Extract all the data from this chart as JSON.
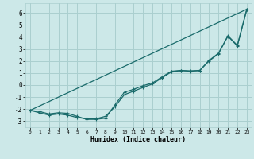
{
  "xlabel": "Humidex (Indice chaleur)",
  "bg_color": "#cce8e8",
  "grid_color": "#aacfcf",
  "line_color": "#1a6b6b",
  "xlim": [
    -0.5,
    23.5
  ],
  "ylim": [
    -3.5,
    6.8
  ],
  "xticks": [
    0,
    1,
    2,
    3,
    4,
    5,
    6,
    7,
    8,
    9,
    10,
    11,
    12,
    13,
    14,
    15,
    16,
    17,
    18,
    19,
    20,
    21,
    22,
    23
  ],
  "yticks": [
    -3,
    -2,
    -1,
    0,
    1,
    2,
    3,
    4,
    5,
    6
  ],
  "series1_x": [
    0,
    1,
    2,
    3,
    4,
    5,
    6,
    7,
    8,
    9,
    10,
    11,
    12,
    13,
    14,
    15,
    16,
    17,
    18,
    19,
    20,
    21,
    22,
    23
  ],
  "series1_y": [
    -2.1,
    -2.3,
    -2.5,
    -2.4,
    -2.5,
    -2.7,
    -2.8,
    -2.8,
    -2.6,
    -1.8,
    -0.8,
    -0.5,
    -0.2,
    0.1,
    0.6,
    1.1,
    1.2,
    1.15,
    1.2,
    2.0,
    2.6,
    4.1,
    3.3,
    6.3
  ],
  "series2_x": [
    0,
    1,
    2,
    3,
    4,
    5,
    6,
    7,
    8,
    9,
    10,
    11,
    12,
    13,
    14,
    15,
    16,
    17,
    18,
    19,
    20,
    21,
    22,
    23
  ],
  "series2_y": [
    -2.1,
    -2.2,
    -2.4,
    -2.3,
    -2.35,
    -2.6,
    -2.85,
    -2.85,
    -2.75,
    -1.65,
    -0.6,
    -0.35,
    -0.05,
    0.18,
    0.68,
    1.15,
    1.22,
    1.18,
    1.22,
    2.05,
    2.65,
    4.05,
    3.25,
    6.25
  ],
  "series3_x": [
    0,
    23
  ],
  "series3_y": [
    -2.1,
    6.3
  ]
}
